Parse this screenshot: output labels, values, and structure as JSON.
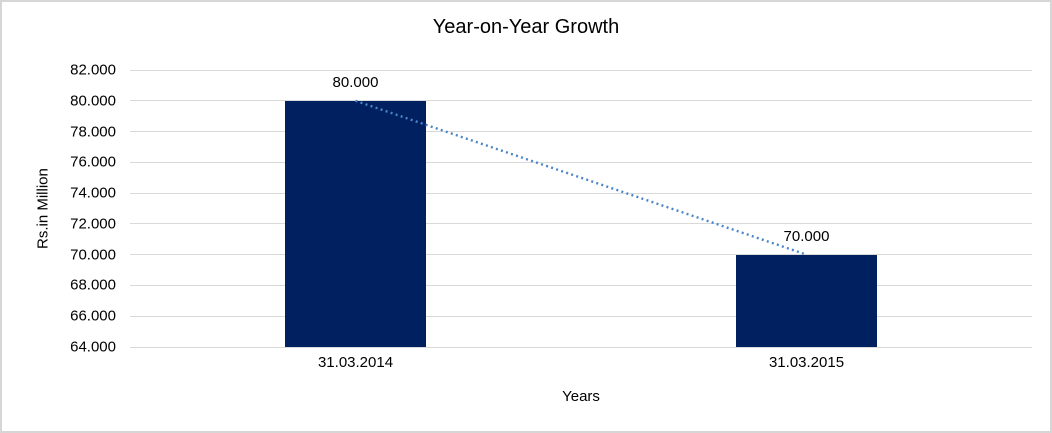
{
  "chart_data": {
    "type": "bar",
    "title": "Year-on-Year Growth",
    "xlabel": "Years",
    "ylabel": "Rs.in Million",
    "categories": [
      "31.03.2014",
      "31.03.2015"
    ],
    "values": [
      80000,
      70000
    ],
    "value_labels": [
      "80.000",
      "70.000"
    ],
    "ylim": [
      64000,
      82000
    ],
    "ytick_step": 2000,
    "ytick_labels": [
      "64.000",
      "66.000",
      "68.000",
      "70.000",
      "72.000",
      "74.000",
      "76.000",
      "78.000",
      "80.000",
      "82.000"
    ],
    "grid": true,
    "legend": "none",
    "trendline": {
      "type": "linear",
      "style": "dotted",
      "color": "#4a86c8"
    },
    "colors": {
      "bar": "#002060",
      "gridline": "#d9d9d9",
      "text": "#000000",
      "background": "#ffffff",
      "border": "#d6d6d6"
    }
  }
}
